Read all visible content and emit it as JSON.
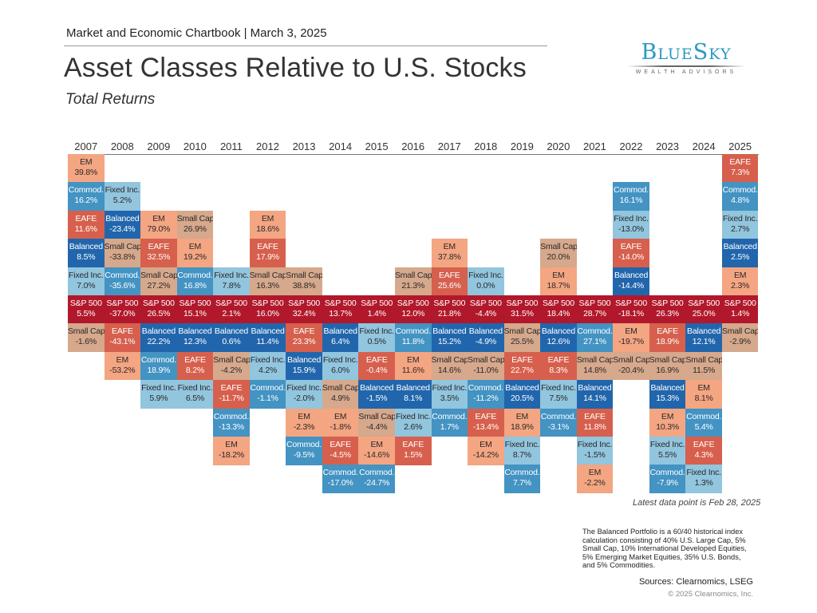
{
  "header": {
    "kicker": "Market and Economic Chartbook | March 3, 2025",
    "title": "Asset Classes Relative to U.S. Stocks",
    "subtitle": "Total Returns"
  },
  "logo": {
    "wordmark": "BlueSky",
    "tagline": "WEALTH ADVISORS"
  },
  "colors": {
    "EM": "#f4a582",
    "EAFE": "#d6604d",
    "Small Cap": "#d6a88c",
    "S&P 500": "#b2182b",
    "Balanced": "#2166ac",
    "Commod.": "#4393c3",
    "Fixed Inc.": "#92c5de"
  },
  "chart_data": {
    "type": "table",
    "anchor": "S&P 500",
    "columns": [
      {
        "year": "2007",
        "above": [
          [
            "EM",
            "39.8%"
          ],
          [
            "Commod.",
            "16.2%"
          ],
          [
            "EAFE",
            "11.6%"
          ],
          [
            "Balanced",
            "8.5%"
          ],
          [
            "Fixed Inc.",
            "7.0%"
          ]
        ],
        "sp": "5.5%",
        "below": [
          [
            "Small Cap",
            "-1.6%"
          ]
        ]
      },
      {
        "year": "2008",
        "above": [
          [
            "Fixed Inc.",
            "5.2%"
          ],
          [
            "Balanced",
            "-23.4%"
          ],
          [
            "Small Cap",
            "-33.8%"
          ],
          [
            "Commod.",
            "-35.6%"
          ]
        ],
        "sp": "-37.0%",
        "below": [
          [
            "EAFE",
            "-43.1%"
          ],
          [
            "EM",
            "-53.2%"
          ]
        ]
      },
      {
        "year": "2009",
        "above": [
          [
            "EM",
            "79.0%"
          ],
          [
            "EAFE",
            "32.5%"
          ],
          [
            "Small Cap",
            "27.2%"
          ]
        ],
        "sp": "26.5%",
        "below": [
          [
            "Balanced",
            "22.2%"
          ],
          [
            "Commod.",
            "18.9%"
          ],
          [
            "Fixed Inc.",
            "5.9%"
          ]
        ]
      },
      {
        "year": "2010",
        "above": [
          [
            "Small Cap",
            "26.9%"
          ],
          [
            "EM",
            "19.2%"
          ],
          [
            "Commod.",
            "16.8%"
          ]
        ],
        "sp": "15.1%",
        "below": [
          [
            "Balanced",
            "12.3%"
          ],
          [
            "EAFE",
            "8.2%"
          ],
          [
            "Fixed Inc.",
            "6.5%"
          ]
        ]
      },
      {
        "year": "2011",
        "above": [
          [
            "Fixed Inc.",
            "7.8%"
          ]
        ],
        "sp": "2.1%",
        "below": [
          [
            "Balanced",
            "0.6%"
          ],
          [
            "Small Cap",
            "-4.2%"
          ],
          [
            "EAFE",
            "-11.7%"
          ],
          [
            "Commod.",
            "-13.3%"
          ],
          [
            "EM",
            "-18.2%"
          ]
        ]
      },
      {
        "year": "2012",
        "above": [
          [
            "EM",
            "18.6%"
          ],
          [
            "EAFE",
            "17.9%"
          ],
          [
            "Small Cap",
            "16.3%"
          ]
        ],
        "sp": "16.0%",
        "below": [
          [
            "Balanced",
            "11.4%"
          ],
          [
            "Fixed Inc.",
            "4.2%"
          ],
          [
            "Commod.",
            "-1.1%"
          ]
        ]
      },
      {
        "year": "2013",
        "above": [
          [
            "Small Cap",
            "38.8%"
          ]
        ],
        "sp": "32.4%",
        "below": [
          [
            "EAFE",
            "23.3%"
          ],
          [
            "Balanced",
            "15.9%"
          ],
          [
            "Fixed Inc.",
            "-2.0%"
          ],
          [
            "EM",
            "-2.3%"
          ],
          [
            "Commod.",
            "-9.5%"
          ]
        ]
      },
      {
        "year": "2014",
        "above": [],
        "sp": "13.7%",
        "below": [
          [
            "Balanced",
            "6.4%"
          ],
          [
            "Fixed Inc.",
            "6.0%"
          ],
          [
            "Small Cap",
            "4.9%"
          ],
          [
            "EM",
            "-1.8%"
          ],
          [
            "EAFE",
            "-4.5%"
          ],
          [
            "Commod.",
            "-17.0%"
          ]
        ]
      },
      {
        "year": "2015",
        "above": [],
        "sp": "1.4%",
        "below": [
          [
            "Fixed Inc.",
            "0.5%"
          ],
          [
            "EAFE",
            "-0.4%"
          ],
          [
            "Balanced",
            "-1.5%"
          ],
          [
            "Small Cap",
            "-4.4%"
          ],
          [
            "EM",
            "-14.6%"
          ],
          [
            "Commod.",
            "-24.7%"
          ]
        ]
      },
      {
        "year": "2016",
        "above": [
          [
            "Small Cap",
            "21.3%"
          ]
        ],
        "sp": "12.0%",
        "below": [
          [
            "Commod.",
            "11.8%"
          ],
          [
            "EM",
            "11.6%"
          ],
          [
            "Balanced",
            "8.1%"
          ],
          [
            "Fixed Inc.",
            "2.6%"
          ],
          [
            "EAFE",
            "1.5%"
          ]
        ]
      },
      {
        "year": "2017",
        "above": [
          [
            "EM",
            "37.8%"
          ],
          [
            "EAFE",
            "25.6%"
          ]
        ],
        "sp": "21.8%",
        "below": [
          [
            "Balanced",
            "15.2%"
          ],
          [
            "Small Cap",
            "14.6%"
          ],
          [
            "Fixed Inc.",
            "3.5%"
          ],
          [
            "Commod.",
            "1.7%"
          ]
        ]
      },
      {
        "year": "2018",
        "above": [
          [
            "Fixed Inc.",
            "0.0%"
          ]
        ],
        "sp": "-4.4%",
        "below": [
          [
            "Balanced",
            "-4.9%"
          ],
          [
            "Small Cap",
            "-11.0%"
          ],
          [
            "Commod.",
            "-11.2%"
          ],
          [
            "EAFE",
            "-13.4%"
          ],
          [
            "EM",
            "-14.2%"
          ]
        ]
      },
      {
        "year": "2019",
        "above": [],
        "sp": "31.5%",
        "below": [
          [
            "Small Cap",
            "25.5%"
          ],
          [
            "EAFE",
            "22.7%"
          ],
          [
            "Balanced",
            "20.5%"
          ],
          [
            "EM",
            "18.9%"
          ],
          [
            "Fixed Inc.",
            "8.7%"
          ],
          [
            "Commod.",
            "7.7%"
          ]
        ]
      },
      {
        "year": "2020",
        "above": [
          [
            "Small Cap",
            "20.0%"
          ],
          [
            "EM",
            "18.7%"
          ]
        ],
        "sp": "18.4%",
        "below": [
          [
            "Balanced",
            "12.6%"
          ],
          [
            "EAFE",
            "8.3%"
          ],
          [
            "Fixed Inc.",
            "7.5%"
          ],
          [
            "Commod.",
            "-3.1%"
          ]
        ]
      },
      {
        "year": "2021",
        "above": [],
        "sp": "28.7%",
        "below": [
          [
            "Commod.",
            "27.1%"
          ],
          [
            "Small Cap",
            "14.8%"
          ],
          [
            "Balanced",
            "14.1%"
          ],
          [
            "EAFE",
            "11.8%"
          ],
          [
            "Fixed Inc.",
            "-1.5%"
          ],
          [
            "EM",
            "-2.2%"
          ]
        ]
      },
      {
        "year": "2022",
        "above": [
          [
            "Commod.",
            "16.1%"
          ],
          [
            "Fixed Inc.",
            "-13.0%"
          ],
          [
            "EAFE",
            "-14.0%"
          ],
          [
            "Balanced",
            "-14.4%"
          ]
        ],
        "sp": "-18.1%",
        "below": [
          [
            "EM",
            "-19.7%"
          ],
          [
            "Small Cap",
            "-20.4%"
          ]
        ]
      },
      {
        "year": "2023",
        "above": [],
        "sp": "26.3%",
        "below": [
          [
            "EAFE",
            "18.9%"
          ],
          [
            "Small Cap",
            "16.9%"
          ],
          [
            "Balanced",
            "15.3%"
          ],
          [
            "EM",
            "10.3%"
          ],
          [
            "Fixed Inc.",
            "5.5%"
          ],
          [
            "Commod.",
            "-7.9%"
          ]
        ]
      },
      {
        "year": "2024",
        "above": [],
        "sp": "25.0%",
        "below": [
          [
            "Balanced",
            "12.1%"
          ],
          [
            "Small Cap",
            "11.5%"
          ],
          [
            "EM",
            "8.1%"
          ],
          [
            "Commod.",
            "5.4%"
          ],
          [
            "EAFE",
            "4.3%"
          ],
          [
            "Fixed Inc.",
            "1.3%"
          ]
        ]
      },
      {
        "year": "2025",
        "above": [
          [
            "EAFE",
            "7.3%"
          ],
          [
            "Commod.",
            "4.8%"
          ],
          [
            "Fixed Inc.",
            "2.7%"
          ],
          [
            "Balanced",
            "2.5%"
          ],
          [
            "EM",
            "2.3%"
          ]
        ],
        "sp": "1.4%",
        "below": [
          [
            "Small Cap",
            "-2.9%"
          ]
        ]
      }
    ]
  },
  "footer": {
    "latest_note": "Latest data point is Feb 28, 2025",
    "footnote": "The Balanced Portfolio is a 60/40 historical index calculation consisting of 40% U.S. Large Cap, 5% Small Cap, 10% International Developed Equities, 5% Emerging Market Equities, 35% U.S. Bonds, and 5% Commodities.",
    "sources": "Sources: Clearnomics, LSEG",
    "copyright": "© 2025 Clearnomics, Inc."
  }
}
